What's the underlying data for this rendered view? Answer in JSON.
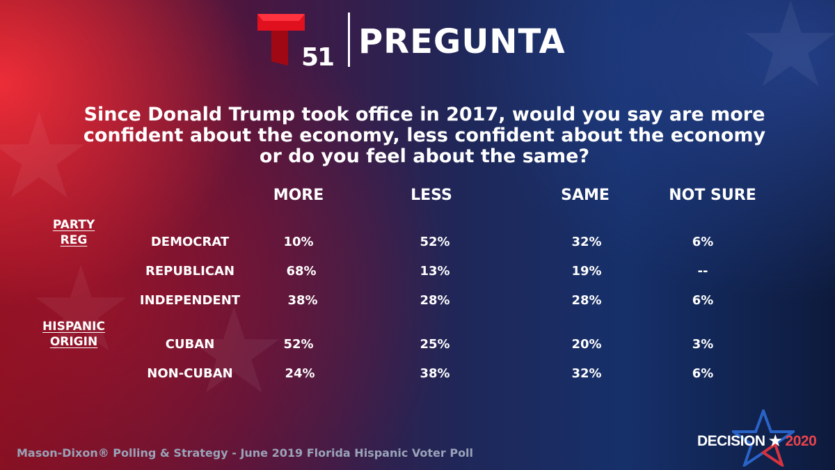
{
  "header": {
    "logo_number": "51",
    "title": "PREGUNTA"
  },
  "question": {
    "line1": "Since Donald Trump took office in 2017, would you say are more",
    "line2": "confident about the economy, less confident about the economy",
    "line3": "or do you feel about the same?"
  },
  "columns": [
    "MORE",
    "LESS",
    "SAME",
    "NOT SURE"
  ],
  "groups": {
    "party": {
      "line1": "PARTY",
      "line2": "REG"
    },
    "origin": {
      "line1": "HISPANIC",
      "line2": "ORIGIN"
    }
  },
  "rows": [
    {
      "label": "DEMOCRAT",
      "values": [
        "10%",
        "52%",
        "32%",
        "6%"
      ]
    },
    {
      "label": "REPUBLICAN",
      "values": [
        "68%",
        "13%",
        "19%",
        "--"
      ]
    },
    {
      "label": "INDEPENDENT",
      "values": [
        "38%",
        "28%",
        "28%",
        "6%"
      ]
    },
    {
      "label": "CUBAN",
      "values": [
        "52%",
        "25%",
        "20%",
        "3%"
      ]
    },
    {
      "label": "NON-CUBAN",
      "values": [
        "24%",
        "38%",
        "32%",
        "6%"
      ]
    }
  ],
  "footer": "Mason-Dixon® Polling & Strategy - June 2019 Florida Hispanic Voter Poll",
  "badge": {
    "word": "DECISION",
    "star": "★",
    "year": "2020"
  },
  "colors": {
    "telemundo_red": "#e0101e",
    "accent_blue": "#1e4fa0"
  }
}
